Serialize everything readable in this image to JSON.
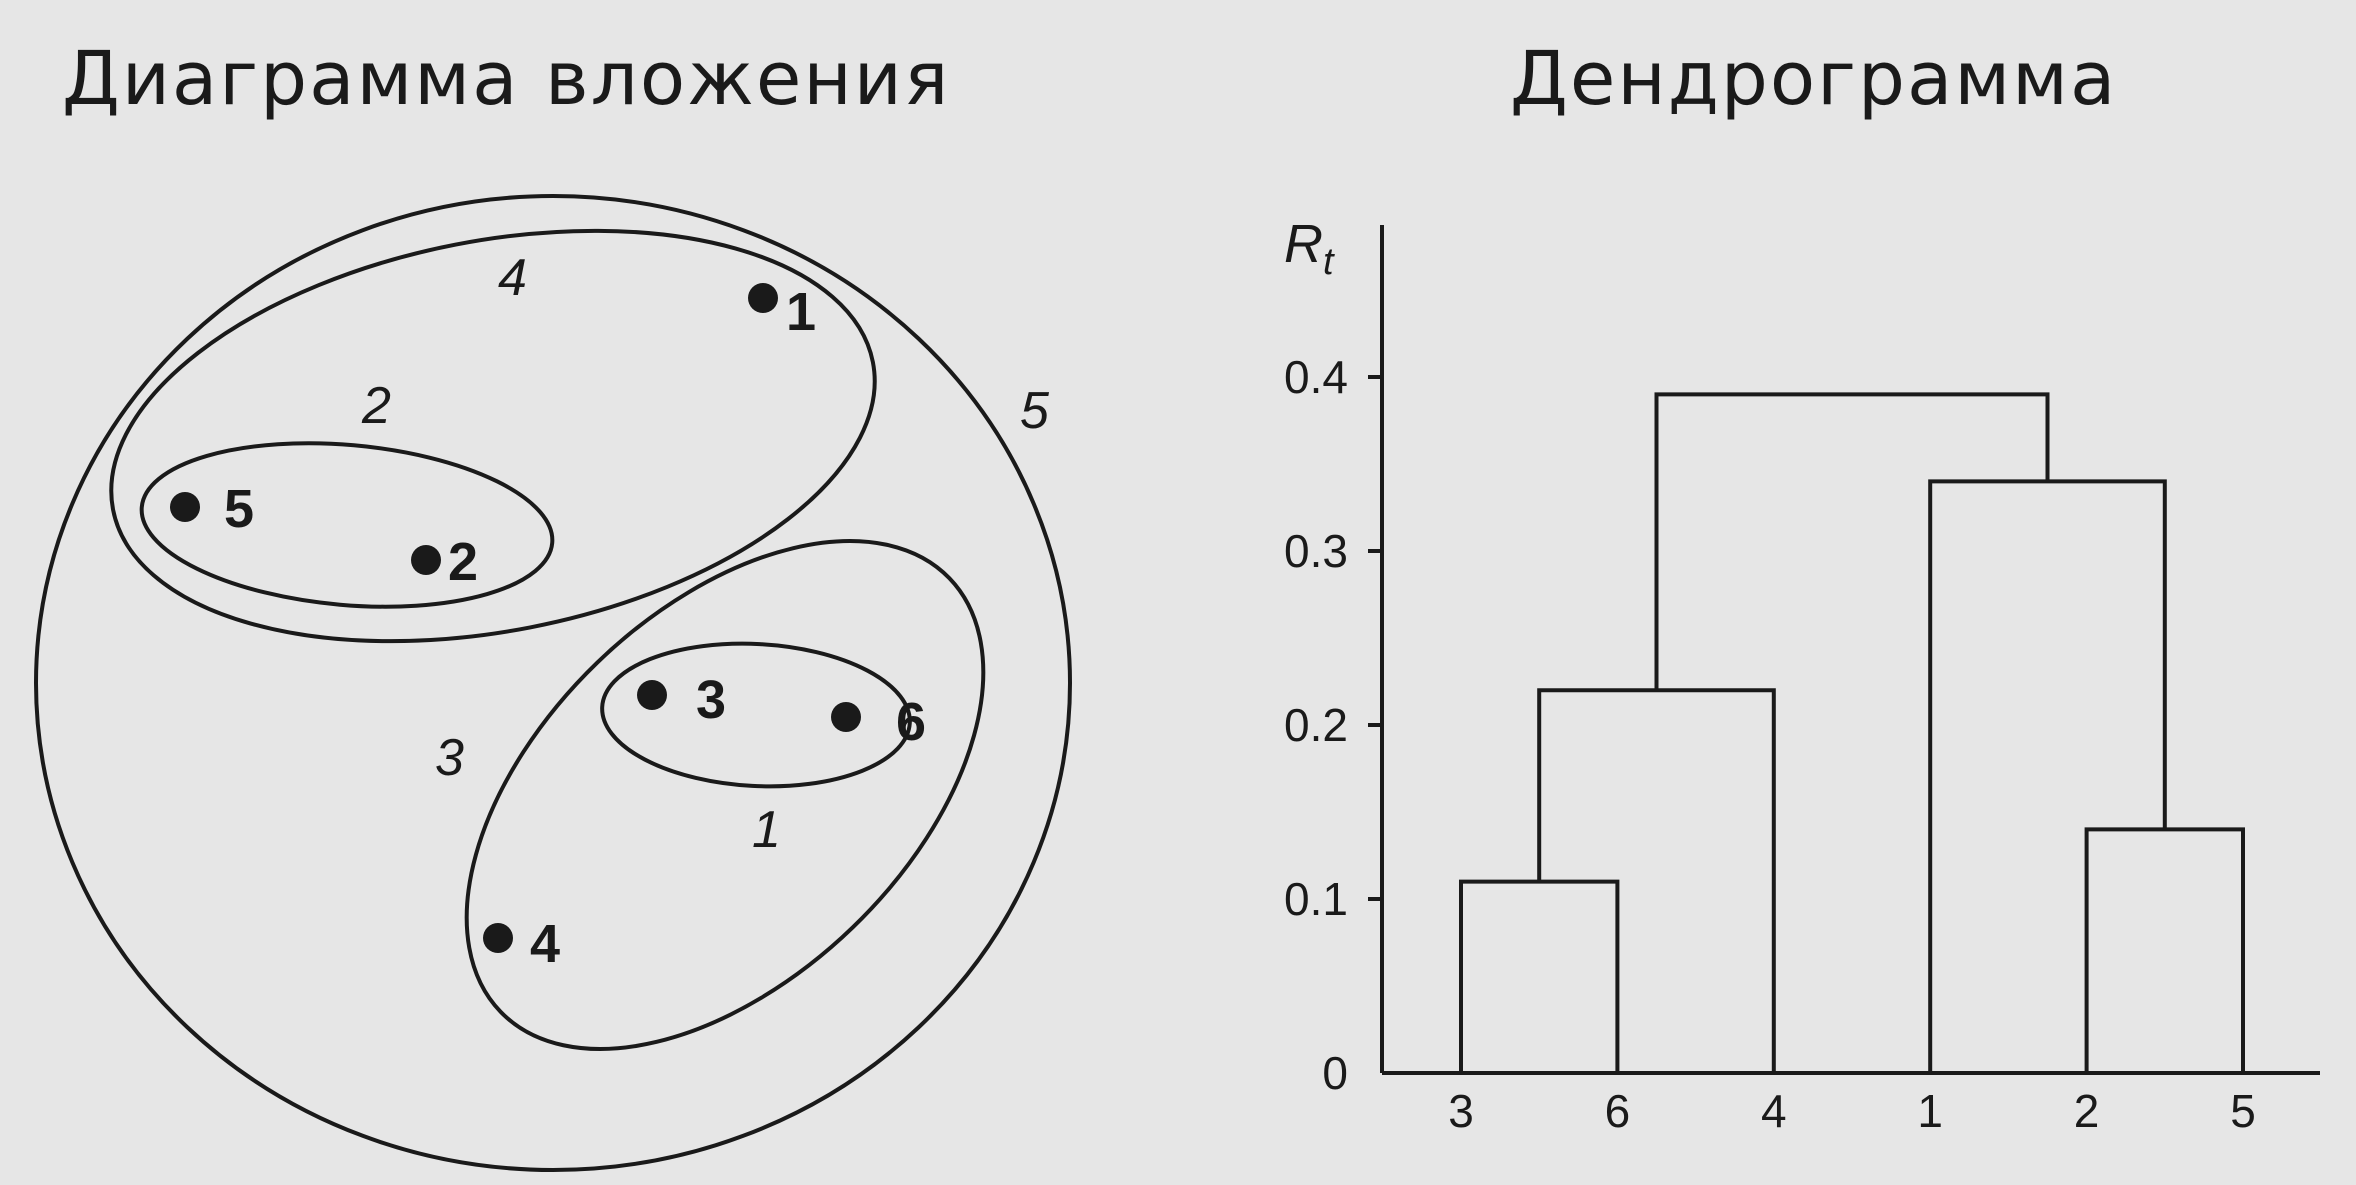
{
  "titles": {
    "left": "Диаграмма вложения",
    "right": "Дендрограмма"
  },
  "nesting": {
    "points": [
      {
        "id": "1",
        "label": "1"
      },
      {
        "id": "2",
        "label": "2"
      },
      {
        "id": "3",
        "label": "3"
      },
      {
        "id": "4",
        "label": "4"
      },
      {
        "id": "5",
        "label": "5"
      },
      {
        "id": "6",
        "label": "6"
      }
    ],
    "clusters": [
      {
        "id": "1",
        "label": "1",
        "members": [
          "3",
          "6"
        ]
      },
      {
        "id": "2",
        "label": "2",
        "members": [
          "5",
          "2"
        ]
      },
      {
        "id": "3",
        "label": "3",
        "members": [
          "3",
          "6",
          "4"
        ]
      },
      {
        "id": "4",
        "label": "4",
        "members": [
          "5",
          "2",
          "1"
        ]
      },
      {
        "id": "5",
        "label": "5",
        "members": [
          "1",
          "2",
          "3",
          "4",
          "5",
          "6"
        ]
      }
    ]
  },
  "chart_data": {
    "type": "dendrogram",
    "title": "Дендрограмма",
    "ylabel": "R",
    "ylabel_subscript": "t",
    "ylim": [
      0,
      0.45
    ],
    "y_ticks": [
      {
        "value": 0,
        "label": "0"
      },
      {
        "value": 0.1,
        "label": "0.1"
      },
      {
        "value": 0.2,
        "label": "0.2"
      },
      {
        "value": 0.3,
        "label": "0.3"
      },
      {
        "value": 0.4,
        "label": "0.4"
      }
    ],
    "leaves": [
      "3",
      "6",
      "4",
      "1",
      "2",
      "5"
    ],
    "merges": [
      {
        "left": "3",
        "right": "6",
        "height": 0.11,
        "cluster": "1"
      },
      {
        "left": "5",
        "right": "2",
        "height": 0.14,
        "cluster": "2"
      },
      {
        "left": "c1",
        "right": "4",
        "height": 0.22,
        "cluster": "3"
      },
      {
        "left": "1",
        "right": "c2",
        "height": 0.34,
        "cluster": "4"
      },
      {
        "left": "c3",
        "right": "c4",
        "height": 0.39,
        "cluster": "5"
      }
    ]
  }
}
